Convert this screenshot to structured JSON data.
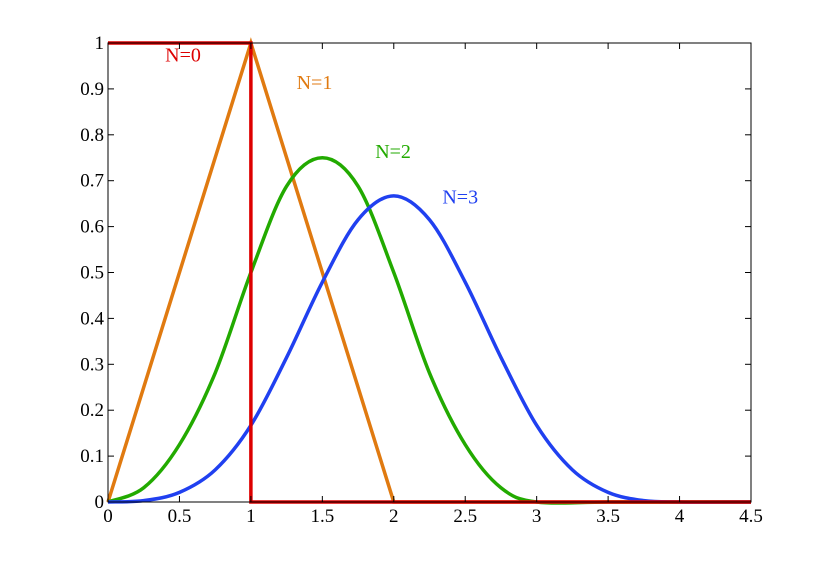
{
  "chart_data": {
    "type": "line",
    "title": "",
    "xlabel": "",
    "ylabel": "",
    "xlim": [
      0,
      4.5
    ],
    "ylim": [
      0,
      1
    ],
    "grid": false,
    "legend": "inline labels",
    "x_ticks": [
      "0",
      "0.5",
      "1",
      "1.5",
      "2",
      "2.5",
      "3",
      "3.5",
      "4",
      "4.5"
    ],
    "y_ticks": [
      "0",
      "0.1",
      "0.2",
      "0.3",
      "0.4",
      "0.5",
      "0.6",
      "0.7",
      "0.8",
      "0.9",
      "1"
    ],
    "series": [
      {
        "name": "N=0",
        "color": "#dd0000",
        "x": [
          0,
          1,
          1,
          1,
          4.5
        ],
        "y": [
          1,
          1,
          0.5,
          0,
          0
        ]
      },
      {
        "name": "N=1",
        "color": "#e07a10",
        "x": [
          0,
          1,
          2,
          4.5
        ],
        "y": [
          0,
          1,
          0,
          0
        ]
      },
      {
        "name": "N=2",
        "color": "#22aa00",
        "x": [
          0,
          0.25,
          0.5,
          0.75,
          1,
          1.25,
          1.5,
          1.75,
          2,
          2.25,
          2.5,
          2.75,
          3,
          3.5,
          4,
          4.5
        ],
        "y": [
          0,
          0.031,
          0.125,
          0.281,
          0.5,
          0.688,
          0.75,
          0.688,
          0.5,
          0.281,
          0.125,
          0.031,
          0,
          0,
          0,
          0
        ]
      },
      {
        "name": "N=3",
        "color": "#2040f0",
        "x": [
          0,
          0.25,
          0.5,
          0.75,
          1,
          1.25,
          1.5,
          1.75,
          2,
          2.25,
          2.5,
          2.75,
          3,
          3.25,
          3.5,
          3.75,
          4,
          4.5
        ],
        "y": [
          0,
          0.003,
          0.021,
          0.07,
          0.167,
          0.315,
          0.479,
          0.615,
          0.667,
          0.615,
          0.479,
          0.315,
          0.167,
          0.07,
          0.021,
          0.003,
          0,
          0
        ]
      }
    ],
    "annotations": [
      {
        "text": "N=0",
        "x": 0.4,
        "y": 0.96,
        "color": "#dd0000"
      },
      {
        "text": "N=1",
        "x": 1.32,
        "y": 0.9,
        "color": "#e07a10"
      },
      {
        "text": "N=2",
        "x": 1.87,
        "y": 0.75,
        "color": "#22aa00"
      },
      {
        "text": "N=3",
        "x": 2.34,
        "y": 0.65,
        "color": "#2040f0"
      }
    ]
  }
}
